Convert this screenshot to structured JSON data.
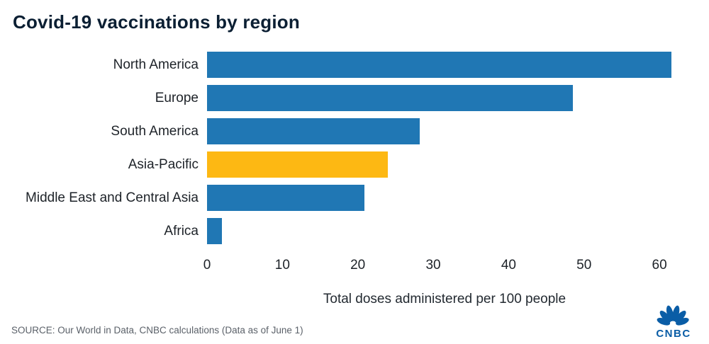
{
  "title": "Covid-19 vaccinations by region",
  "chart_data": {
    "type": "bar",
    "orientation": "horizontal",
    "title": "Covid-19 vaccinations by region",
    "categories": [
      "North America",
      "Europe",
      "South America",
      "Asia-Pacific",
      "Middle East and Central Asia",
      "Africa"
    ],
    "values": [
      61.6,
      48.5,
      28.2,
      24,
      20.9,
      2
    ],
    "highlight_index": 3,
    "bar_color": "#2077b4",
    "highlight_color": "#fdb813",
    "xlabel": "Total doses administered per 100 people",
    "ylabel": "",
    "xlim": [
      0,
      63
    ],
    "ticks": [
      0,
      10,
      20,
      30,
      40,
      50,
      60
    ],
    "grid": false,
    "legend": "none"
  },
  "xlabel": "Total doses administered per 100 people",
  "source": "SOURCE: Our World in Data, CNBC calculations (Data as of June 1)",
  "logo": {
    "text": "CNBC",
    "color": "#0a5da6",
    "icon": "cnbc-peacock-icon"
  }
}
